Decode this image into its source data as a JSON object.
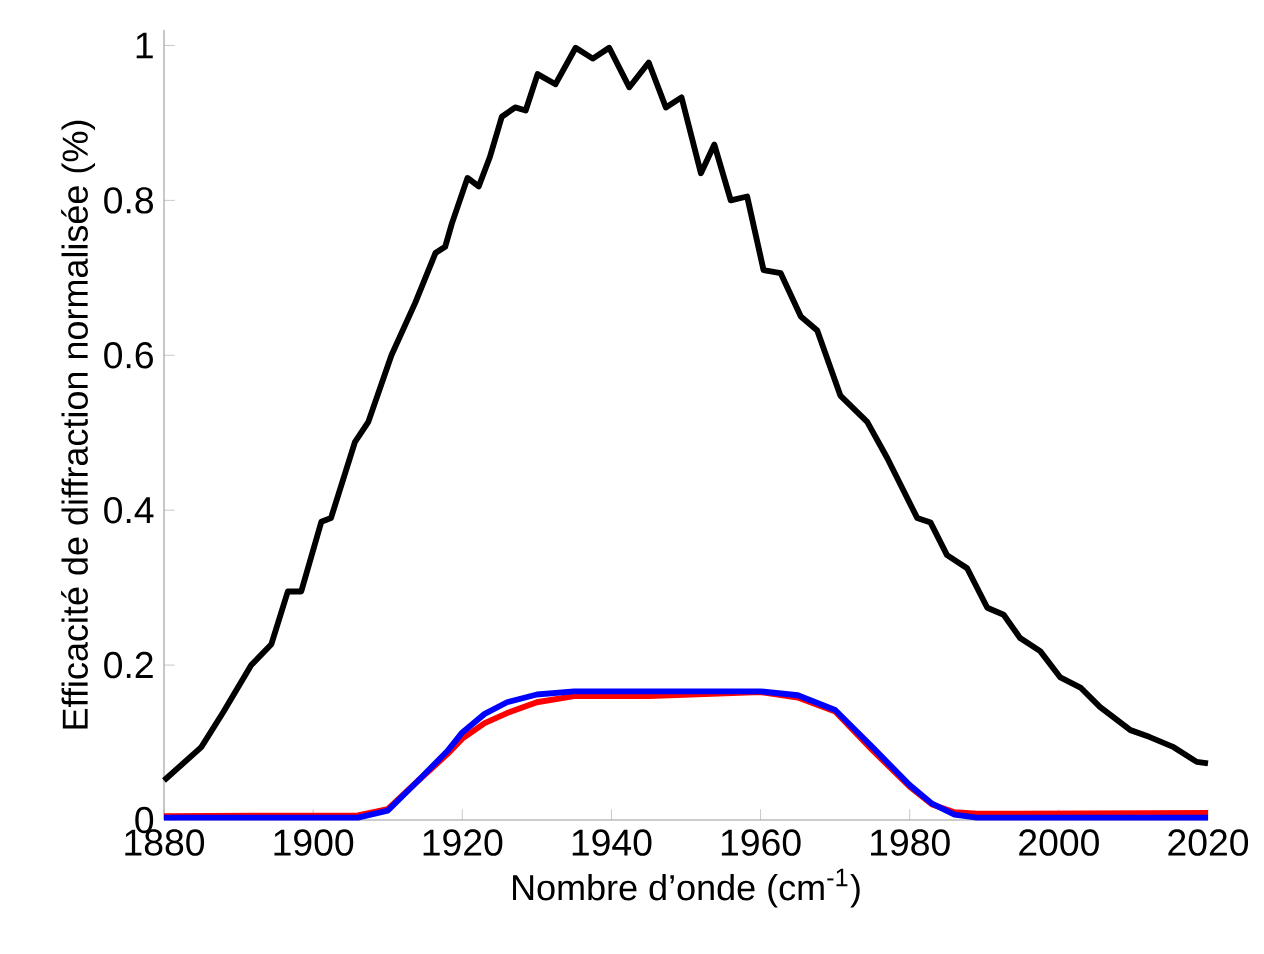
{
  "chart_data": {
    "type": "line",
    "xlabel": "Nombre d’onde (cm$^{-1}$)",
    "ylabel": "Efficacité de diffraction normalisée (%)",
    "xlim": [
      1880,
      2020
    ],
    "ylim": [
      0,
      1.02
    ],
    "xticks": [
      1880,
      1900,
      1920,
      1940,
      1960,
      1980,
      2000,
      2020
    ],
    "yticks": [
      0,
      0.2,
      0.4,
      0.6,
      0.8,
      1
    ],
    "series": [
      {
        "color": "#000000",
        "x": [
          1880,
          1885,
          1888,
          1891.7,
          1894.4,
          1896.6,
          1898.4,
          1901.1,
          1902.4,
          1905.6,
          1907.4,
          1910.5,
          1913.7,
          1916.4,
          1917.7,
          1918.6,
          1920.7,
          1922.2,
          1923.7,
          1925.3,
          1927.1,
          1928.5,
          1930.1,
          1932.5,
          1935.2,
          1937.5,
          1939.7,
          1942.4,
          1945,
          1947.3,
          1949.4,
          1952,
          1953.8,
          1956,
          1958.2,
          1960.4,
          1962.7,
          1965.4,
          1967.6,
          1970.7,
          1974.3,
          1977,
          1981,
          1982.8,
          1985,
          1987.7,
          1990.4,
          1992.6,
          1994.8,
          1997.5,
          2000.2,
          2002.9,
          2005.5,
          2009.6,
          2012.2,
          2015.4,
          2018.5,
          2020
        ],
        "values": [
          0.051,
          0.094,
          0.14,
          0.2,
          0.227,
          0.295,
          0.295,
          0.385,
          0.39,
          0.488,
          0.514,
          0.6,
          0.668,
          0.732,
          0.74,
          0.77,
          0.829,
          0.818,
          0.856,
          0.908,
          0.92,
          0.916,
          0.963,
          0.95,
          0.997,
          0.983,
          0.997,
          0.946,
          0.978,
          0.92,
          0.933,
          0.835,
          0.872,
          0.8,
          0.805,
          0.71,
          0.706,
          0.65,
          0.632,
          0.548,
          0.514,
          0.467,
          0.39,
          0.384,
          0.342,
          0.325,
          0.274,
          0.265,
          0.235,
          0.218,
          0.184,
          0.171,
          0.146,
          0.116,
          0.107,
          0.094,
          0.075,
          0.073
        ]
      },
      {
        "color": "#ff0000",
        "x": [
          1880,
          1906,
          1910,
          1914,
          1918,
          1920,
          1923,
          1926,
          1930,
          1935,
          1945,
          1960,
          1965,
          1970,
          1975,
          1980,
          1983,
          1986,
          1989,
          2020
        ],
        "values": [
          0.005,
          0.006,
          0.014,
          0.05,
          0.085,
          0.105,
          0.125,
          0.138,
          0.152,
          0.16,
          0.16,
          0.165,
          0.158,
          0.14,
          0.09,
          0.043,
          0.02,
          0.01,
          0.008,
          0.009
        ]
      },
      {
        "color": "#0000ff",
        "x": [
          1880,
          1906,
          1910,
          1914,
          1918,
          1920,
          1923,
          1926,
          1930,
          1935,
          1960,
          1965,
          1970,
          1975,
          1980,
          1983,
          1986,
          1989,
          2020
        ],
        "values": [
          0.003,
          0.003,
          0.012,
          0.05,
          0.089,
          0.113,
          0.137,
          0.152,
          0.162,
          0.166,
          0.166,
          0.161,
          0.142,
          0.094,
          0.045,
          0.021,
          0.007,
          0.003,
          0.003
        ]
      }
    ]
  }
}
